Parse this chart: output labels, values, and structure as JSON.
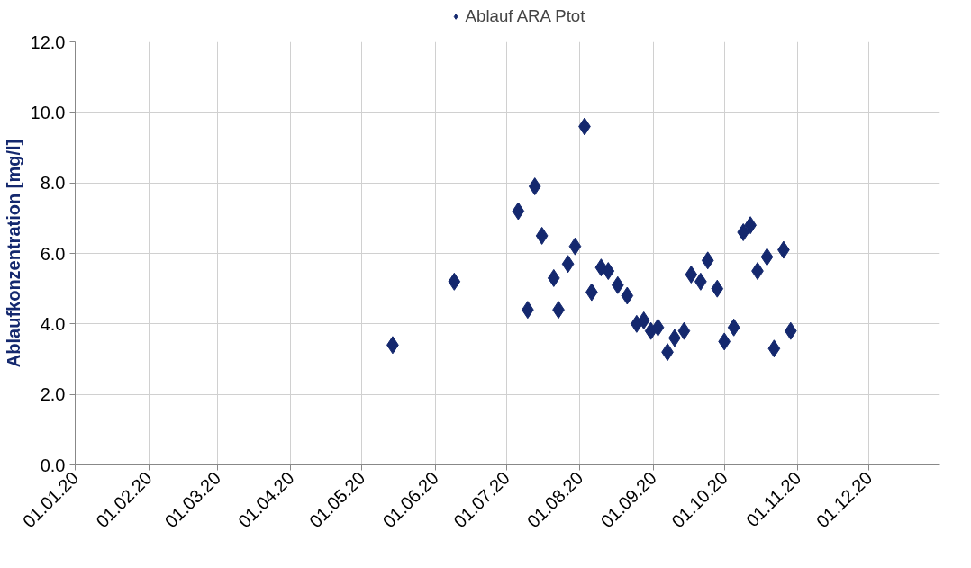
{
  "chart_data": {
    "type": "scatter",
    "ylabel": "Ablaufkonzentration [mg/l]",
    "marker": "diamond",
    "legend": "top",
    "grid": true,
    "x": [
      "2020-05-14",
      "2020-06-09",
      "2020-07-06",
      "2020-07-10",
      "2020-07-13",
      "2020-07-16",
      "2020-07-21",
      "2020-07-23",
      "2020-07-27",
      "2020-07-30",
      "2020-08-03",
      "2020-08-06",
      "2020-08-10",
      "2020-08-13",
      "2020-08-17",
      "2020-08-21",
      "2020-08-25",
      "2020-08-28",
      "2020-08-31",
      "2020-09-03",
      "2020-09-07",
      "2020-09-10",
      "2020-09-14",
      "2020-09-17",
      "2020-09-21",
      "2020-09-24",
      "2020-09-28",
      "2020-10-01",
      "2020-10-05",
      "2020-10-09",
      "2020-10-12",
      "2020-10-15",
      "2020-10-19",
      "2020-10-22",
      "2020-10-26",
      "2020-10-29"
    ],
    "series": [
      {
        "name": "Ablauf ARA Ptot",
        "color": "#14286e",
        "values": [
          3.4,
          5.2,
          7.2,
          4.4,
          7.9,
          6.5,
          5.3,
          4.4,
          5.7,
          6.2,
          9.6,
          4.9,
          5.6,
          5.5,
          5.1,
          4.8,
          4.0,
          4.1,
          3.8,
          3.9,
          3.2,
          3.6,
          3.8,
          5.4,
          5.2,
          5.8,
          5.0,
          3.5,
          3.9,
          6.6,
          6.8,
          5.5,
          5.9,
          3.3,
          6.1,
          3.8
        ]
      }
    ],
    "xlim": [
      "2020-01-01",
      "2020-12-31"
    ],
    "xticks": [
      {
        "value": "2020-01-01",
        "label": "01.01.20"
      },
      {
        "value": "2020-02-01",
        "label": "01.02.20"
      },
      {
        "value": "2020-03-01",
        "label": "01.03.20"
      },
      {
        "value": "2020-04-01",
        "label": "01.04.20"
      },
      {
        "value": "2020-05-01",
        "label": "01.05.20"
      },
      {
        "value": "2020-06-01",
        "label": "01.06.20"
      },
      {
        "value": "2020-07-01",
        "label": "01.07.20"
      },
      {
        "value": "2020-08-01",
        "label": "01.08.20"
      },
      {
        "value": "2020-09-01",
        "label": "01.09.20"
      },
      {
        "value": "2020-10-01",
        "label": "01.10.20"
      },
      {
        "value": "2020-11-01",
        "label": "01.11.20"
      },
      {
        "value": "2020-12-01",
        "label": "01.12.20"
      }
    ],
    "ylim": [
      0,
      12
    ],
    "yticks": [
      {
        "value": 0,
        "label": "0.0"
      },
      {
        "value": 2,
        "label": "2.0"
      },
      {
        "value": 4,
        "label": "4.0"
      },
      {
        "value": 6,
        "label": "6.0"
      },
      {
        "value": 8,
        "label": "8.0"
      },
      {
        "value": 10,
        "label": "10.0"
      },
      {
        "value": 12,
        "label": "12.0"
      }
    ]
  }
}
